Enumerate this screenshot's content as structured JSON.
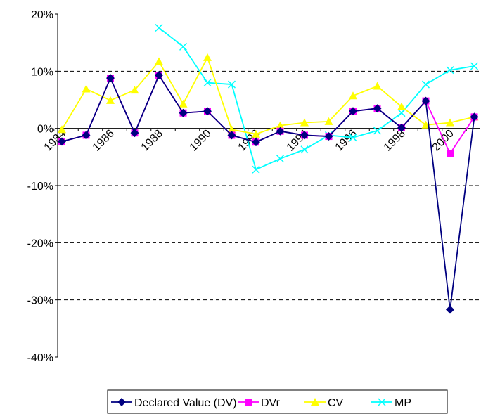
{
  "chart_data": {
    "type": "line",
    "categories": [
      "1984",
      null,
      "1986",
      null,
      "1988",
      null,
      "1990",
      null,
      "1992",
      null,
      "1994",
      null,
      "1996",
      null,
      "1998",
      null,
      "2000",
      null
    ],
    "series": [
      {
        "name": "Declared Value (DV)",
        "color": "#000080",
        "marker": "diamond",
        "values": [
          -2.3,
          -1.2,
          8.8,
          -0.8,
          9.3,
          2.7,
          3.0,
          -1.2,
          -2.4,
          -0.5,
          -1.2,
          -1.4,
          3.0,
          3.5,
          0.1,
          4.8,
          -31.7,
          2.0
        ]
      },
      {
        "name": "DVr",
        "color": "#ff00ff",
        "marker": "square",
        "values": [
          -2.3,
          -1.2,
          8.8,
          -0.8,
          9.3,
          2.7,
          3.0,
          -1.2,
          -2.4,
          -0.5,
          -1.2,
          -1.4,
          3.0,
          3.5,
          0.1,
          4.8,
          -4.4,
          2.0
        ]
      },
      {
        "name": "CV",
        "color": "#ffff00",
        "marker": "triangle",
        "values": [
          -0.2,
          6.9,
          4.9,
          6.7,
          11.7,
          4.3,
          12.4,
          -0.2,
          -1.0,
          0.5,
          1.0,
          1.2,
          5.7,
          7.4,
          3.8,
          0.6,
          1.0,
          2.0
        ]
      },
      {
        "name": "MP",
        "color": "#00ffff",
        "marker": "x",
        "values": [
          null,
          null,
          null,
          null,
          17.6,
          14.3,
          8.0,
          7.7,
          -7.2,
          -5.3,
          -3.7,
          -1.2,
          -1.6,
          -0.4,
          2.7,
          7.7,
          10.2,
          10.9
        ]
      }
    ],
    "ylim": [
      -40,
      20
    ],
    "yticks": [
      {
        "value": -40,
        "label": "-40%"
      },
      {
        "value": -30,
        "label": "-30%"
      },
      {
        "value": -20,
        "label": "-20%"
      },
      {
        "value": -10,
        "label": "-10%"
      },
      {
        "value": 0,
        "label": "0%"
      },
      {
        "value": 10,
        "label": "10%"
      },
      {
        "value": 20,
        "label": "20%"
      }
    ],
    "grid": true,
    "legend": "bottom"
  }
}
